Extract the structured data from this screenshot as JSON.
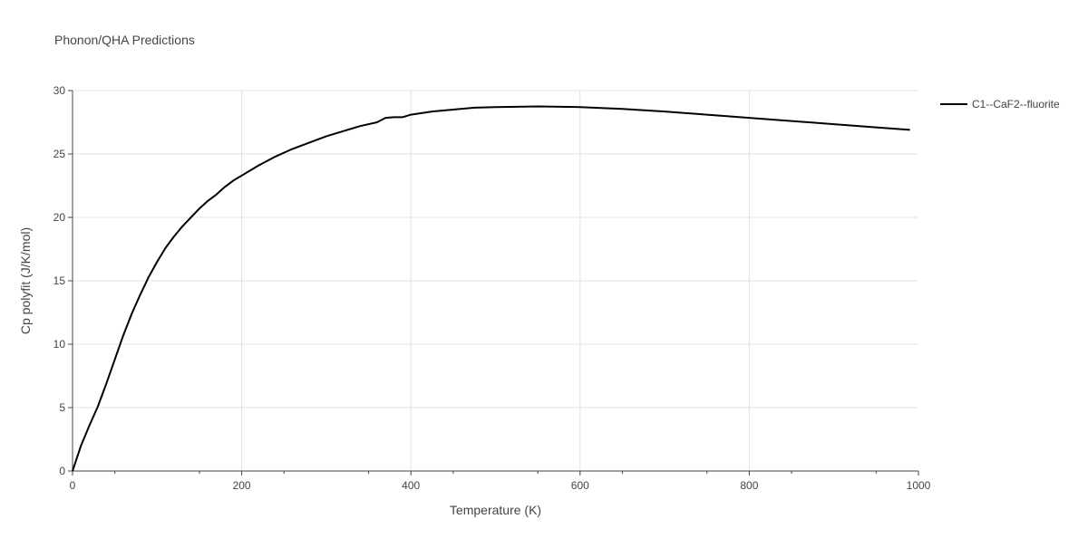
{
  "chart_data": {
    "type": "line",
    "title": "Phonon/QHA Predictions",
    "xlabel": "Temperature (K)",
    "ylabel": "Cp polyfit (J/K/mol)",
    "xlim": [
      0,
      1000
    ],
    "ylim": [
      0,
      30
    ],
    "xticks": [
      0,
      200,
      400,
      600,
      800,
      1000
    ],
    "yticks": [
      0,
      5,
      10,
      15,
      20,
      25,
      30
    ],
    "grid": true,
    "legend_position": "top-right",
    "series": [
      {
        "name": "C1--CaF2--fluorite",
        "color": "#000000",
        "points": [
          [
            0,
            0
          ],
          [
            10,
            2.0
          ],
          [
            20,
            3.6
          ],
          [
            30,
            5.1
          ],
          [
            40,
            6.9
          ],
          [
            50,
            8.8
          ],
          [
            60,
            10.7
          ],
          [
            70,
            12.4
          ],
          [
            80,
            13.9
          ],
          [
            90,
            15.3
          ],
          [
            100,
            16.5
          ],
          [
            110,
            17.6
          ],
          [
            120,
            18.5
          ],
          [
            130,
            19.3
          ],
          [
            140,
            20.0
          ],
          [
            150,
            20.7
          ],
          [
            160,
            21.3
          ],
          [
            170,
            21.8
          ],
          [
            180,
            22.4
          ],
          [
            190,
            22.9
          ],
          [
            200,
            23.3
          ],
          [
            220,
            24.1
          ],
          [
            240,
            24.8
          ],
          [
            260,
            25.4
          ],
          [
            280,
            25.9
          ],
          [
            300,
            26.4
          ],
          [
            320,
            26.8
          ],
          [
            340,
            27.2
          ],
          [
            360,
            27.5
          ],
          [
            370,
            27.85
          ],
          [
            380,
            27.9
          ],
          [
            390,
            27.9
          ],
          [
            400,
            28.1
          ],
          [
            425,
            28.35
          ],
          [
            450,
            28.5
          ],
          [
            475,
            28.65
          ],
          [
            500,
            28.7
          ],
          [
            550,
            28.75
          ],
          [
            600,
            28.7
          ],
          [
            650,
            28.55
          ],
          [
            700,
            28.35
          ],
          [
            750,
            28.1
          ],
          [
            800,
            27.85
          ],
          [
            850,
            27.6
          ],
          [
            900,
            27.35
          ],
          [
            950,
            27.1
          ],
          [
            990,
            26.9
          ]
        ]
      }
    ]
  }
}
